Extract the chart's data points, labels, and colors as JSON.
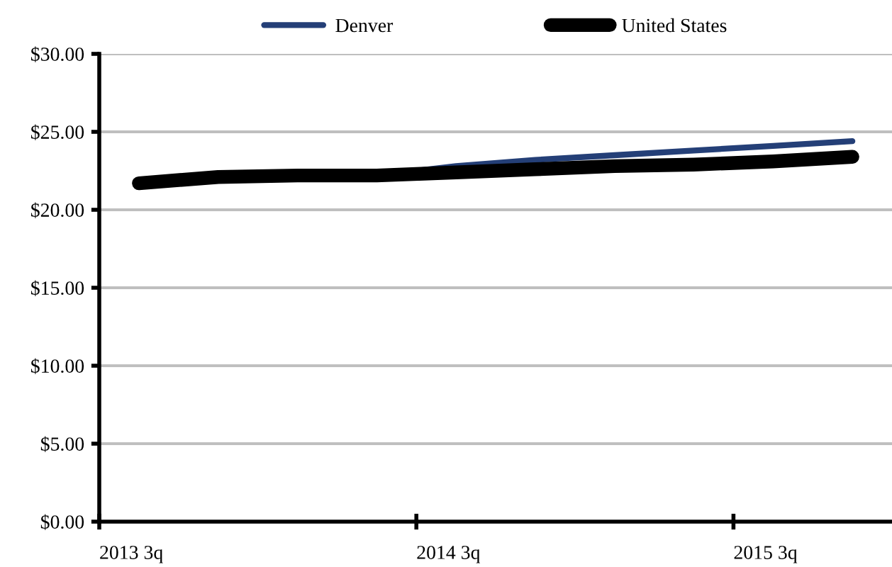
{
  "chart_data": {
    "type": "line",
    "categories": [
      "2013 3q",
      null,
      null,
      null,
      "2014 3q",
      null,
      null,
      null,
      "2015 3q",
      null
    ],
    "series": [
      {
        "name": "Denver",
        "color": "#243f77",
        "values": [
          null,
          null,
          null,
          22.2,
          22.8,
          23.2,
          23.5,
          23.8,
          24.1,
          24.4
        ]
      },
      {
        "name": "United States",
        "color": "#000000",
        "values": [
          21.7,
          22.1,
          22.2,
          22.2,
          22.4,
          22.6,
          22.8,
          22.9,
          23.1,
          23.4
        ]
      }
    ],
    "ylim": [
      0,
      30
    ],
    "yticks": [
      {
        "value": 0,
        "label": "$0.00"
      },
      {
        "value": 5,
        "label": "$5.00"
      },
      {
        "value": 10,
        "label": "$10.00"
      },
      {
        "value": 15,
        "label": "$15.00"
      },
      {
        "value": 20,
        "label": "$20.00"
      },
      {
        "value": 25,
        "label": "$25.00"
      },
      {
        "value": 30,
        "label": "$30.00"
      }
    ],
    "grid": "y",
    "legend": "top",
    "marker": "none",
    "line_style": "solid"
  }
}
